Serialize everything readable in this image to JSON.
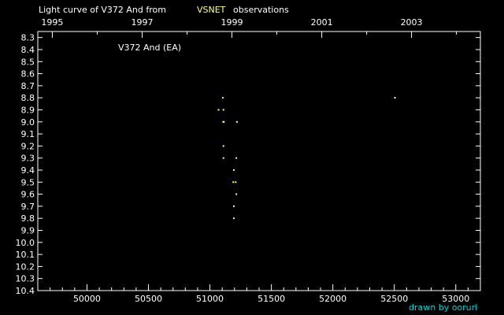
{
  "chart_data": {
    "type": "scatter",
    "title_prefix": "Light curve of V372 And from",
    "title_source": "VSNET",
    "title_suffix": "observations",
    "annotation": "V372 And (EA)",
    "credit": "drawn by ooruri",
    "xlim": [
      49600,
      53200
    ],
    "ylim": [
      8.25,
      10.4
    ],
    "y_inverted": true,
    "x_ticks": [
      {
        "value": 50000,
        "label": "50000"
      },
      {
        "value": 50500,
        "label": "50500"
      },
      {
        "value": 51000,
        "label": "51000"
      },
      {
        "value": 51500,
        "label": "51500"
      },
      {
        "value": 52000,
        "label": "52000"
      },
      {
        "value": 52500,
        "label": "52500"
      },
      {
        "value": 53000,
        "label": "53000"
      }
    ],
    "year_ticks": [
      {
        "value": 49718,
        "label": "1995"
      },
      {
        "value": 50449,
        "label": "1997"
      },
      {
        "value": 51179,
        "label": "1999"
      },
      {
        "value": 51910,
        "label": "2001"
      },
      {
        "value": 52640,
        "label": "2003"
      }
    ],
    "y_ticks": [
      {
        "value": 8.3,
        "label": "8.3"
      },
      {
        "value": 8.4,
        "label": "8.4"
      },
      {
        "value": 8.5,
        "label": "8.5"
      },
      {
        "value": 8.6,
        "label": "8.6"
      },
      {
        "value": 8.7,
        "label": "8.7"
      },
      {
        "value": 8.8,
        "label": "8.8"
      },
      {
        "value": 8.9,
        "label": "8.9"
      },
      {
        "value": 9.0,
        "label": "9.0"
      },
      {
        "value": 9.1,
        "label": "9.1"
      },
      {
        "value": 9.2,
        "label": "9.2"
      },
      {
        "value": 9.3,
        "label": "9.3"
      },
      {
        "value": 9.4,
        "label": "9.4"
      },
      {
        "value": 9.5,
        "label": "9.5"
      },
      {
        "value": 9.6,
        "label": "9.6"
      },
      {
        "value": 9.7,
        "label": "9.7"
      },
      {
        "value": 9.8,
        "label": "9.8"
      },
      {
        "value": 9.9,
        "label": "9.9"
      },
      {
        "value": 10.0,
        "label": "10.0"
      },
      {
        "value": 10.1,
        "label": "10.1"
      },
      {
        "value": 10.2,
        "label": "10.2"
      },
      {
        "value": 10.3,
        "label": "10.3"
      },
      {
        "value": 10.4,
        "label": "10.4"
      }
    ],
    "series": [
      {
        "points": [
          {
            "x": 51105,
            "y": 8.8
          },
          {
            "x": 51070,
            "y": 8.9
          },
          {
            "x": 51110,
            "y": 8.9
          },
          {
            "x": 51108,
            "y": 9.0
          },
          {
            "x": 51113,
            "y": 9.0
          },
          {
            "x": 51220,
            "y": 9.0
          },
          {
            "x": 51110,
            "y": 9.2
          },
          {
            "x": 51110,
            "y": 9.3
          },
          {
            "x": 51215,
            "y": 9.3
          },
          {
            "x": 51195,
            "y": 9.4
          },
          {
            "x": 51190,
            "y": 9.5
          },
          {
            "x": 51210,
            "y": 9.5
          },
          {
            "x": 51215,
            "y": 9.6
          },
          {
            "x": 51195,
            "y": 9.7
          },
          {
            "x": 51195,
            "y": 9.8
          },
          {
            "x": 52505,
            "y": 8.8
          }
        ]
      }
    ],
    "colors": {
      "background": "#000000",
      "text": "#ffffff",
      "source": "#ffff80",
      "point": "#ffff66",
      "point_isolated": "#ffffff",
      "credit": "#00d0d0"
    },
    "grid": false
  }
}
